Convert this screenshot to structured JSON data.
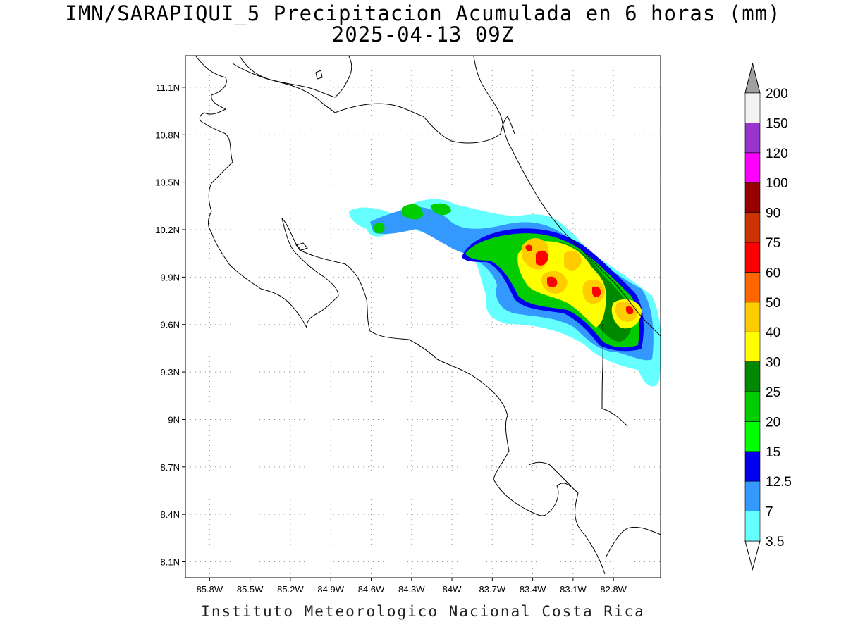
{
  "title": {
    "line1": "IMN/SARAPIQUI_5 Precipitacion Acumulada en 6 horas (mm)",
    "line2": "2025-04-13 09Z"
  },
  "footer": "Instituto Meteorologico Nacional Costa Rica",
  "map": {
    "lat_ticks": [
      {
        "value": 11.1,
        "label": "11.1N"
      },
      {
        "value": 10.8,
        "label": "10.8N"
      },
      {
        "value": 10.5,
        "label": "10.5N"
      },
      {
        "value": 10.2,
        "label": "10.2N"
      },
      {
        "value": 9.9,
        "label": "9.9N"
      },
      {
        "value": 9.6,
        "label": "9.6N"
      },
      {
        "value": 9.3,
        "label": "9.3N"
      },
      {
        "value": 9.0,
        "label": "9N"
      },
      {
        "value": 8.7,
        "label": "8.7N"
      },
      {
        "value": 8.4,
        "label": "8.4N"
      },
      {
        "value": 8.1,
        "label": "8.1N"
      }
    ],
    "lon_ticks": [
      {
        "value": -85.8,
        "label": "85.8W"
      },
      {
        "value": -85.5,
        "label": "85.5W"
      },
      {
        "value": -85.2,
        "label": "85.2W"
      },
      {
        "value": -84.9,
        "label": "84.9W"
      },
      {
        "value": -84.6,
        "label": "84.6W"
      },
      {
        "value": -84.3,
        "label": "84.3W"
      },
      {
        "value": -84.0,
        "label": "84W"
      },
      {
        "value": -83.7,
        "label": "83.7W"
      },
      {
        "value": -83.4,
        "label": "83.4W"
      },
      {
        "value": -83.1,
        "label": "83.1W"
      },
      {
        "value": -82.8,
        "label": "82.8W"
      }
    ],
    "extent": {
      "lon_min": -85.98,
      "lon_max": -82.45,
      "lat_min": 8.0,
      "lat_max": 11.3
    },
    "grid": true
  },
  "legend": {
    "units": "mm",
    "orientation": "vertical-right",
    "classes": [
      {
        "label": "3.5",
        "color": "#ffffff"
      },
      {
        "label": "7",
        "color": "#66ffff"
      },
      {
        "label": "12.5",
        "color": "#3399ff"
      },
      {
        "label": "15",
        "color": "#0000ee"
      },
      {
        "label": "20",
        "color": "#00ff00"
      },
      {
        "label": "25",
        "color": "#00cc00"
      },
      {
        "label": "30",
        "color": "#008800"
      },
      {
        "label": "40",
        "color": "#ffff00"
      },
      {
        "label": "50",
        "color": "#ffcc00"
      },
      {
        "label": "60",
        "color": "#ff6600"
      },
      {
        "label": "75",
        "color": "#ff0000"
      },
      {
        "label": "90",
        "color": "#cc3300"
      },
      {
        "label": "100",
        "color": "#990000"
      },
      {
        "label": "120",
        "color": "#ff00ff"
      },
      {
        "label": "150",
        "color": "#9933cc"
      },
      {
        "label": "200",
        "color": "#f2f2f2"
      }
    ],
    "overflow_color": "#a0a0a0"
  },
  "precip_cells": [
    {
      "lon": -84.7,
      "lat": 10.34,
      "mm": 7
    },
    {
      "lon": -84.6,
      "lat": 10.2,
      "mm": 12.5
    },
    {
      "lon": -84.32,
      "lat": 10.35,
      "mm": 20
    },
    {
      "lon": -84.1,
      "lat": 10.28,
      "mm": 15
    },
    {
      "lon": -83.9,
      "lat": 10.18,
      "mm": 15
    },
    {
      "lon": -83.75,
      "lat": 10.05,
      "mm": 20
    },
    {
      "lon": -83.6,
      "lat": 9.95,
      "mm": 25
    },
    {
      "lon": -83.5,
      "lat": 10.05,
      "mm": 40
    },
    {
      "lon": -83.4,
      "lat": 10.02,
      "mm": 60
    },
    {
      "lon": -83.3,
      "lat": 9.98,
      "mm": 50
    },
    {
      "lon": -83.45,
      "lat": 9.88,
      "mm": 60
    },
    {
      "lon": -83.2,
      "lat": 9.88,
      "mm": 50
    },
    {
      "lon": -83.05,
      "lat": 9.82,
      "mm": 60
    },
    {
      "lon": -82.95,
      "lat": 9.7,
      "mm": 40
    },
    {
      "lon": -82.75,
      "lat": 9.67,
      "mm": 60
    },
    {
      "lon": -82.85,
      "lat": 9.5,
      "mm": 25
    },
    {
      "lon": -83.7,
      "lat": 9.78,
      "mm": 7
    },
    {
      "lon": -83.2,
      "lat": 10.15,
      "mm": 20
    },
    {
      "lon": -82.72,
      "lat": 9.32,
      "mm": 12.5
    }
  ]
}
